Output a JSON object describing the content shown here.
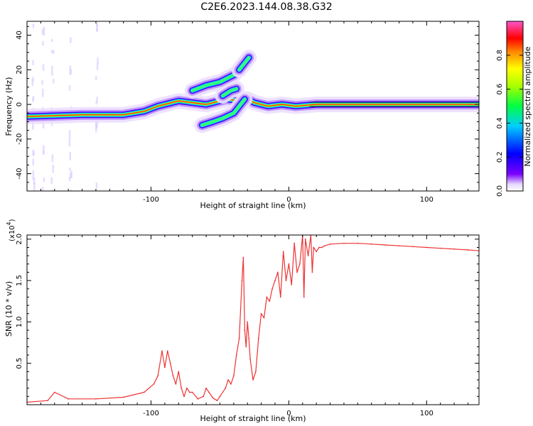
{
  "title": "C2E6.2023.144.08.38.G32",
  "colors": {
    "snr_line": "#ee3333",
    "spectrogram_band": [
      "#6b00ff",
      "#0000ff",
      "#00ccff",
      "#00ff66",
      "#ffff00",
      "#ff6600",
      "#ff0000"
    ]
  },
  "chart_data": [
    {
      "type": "heatmap",
      "xlabel": "Height of straight line (km)",
      "ylabel": "Frequency (Hz)",
      "xlim": [
        -190,
        138
      ],
      "ylim": [
        -50,
        48
      ],
      "x_ticks": [
        {
          "value": -100,
          "label": "-100"
        },
        {
          "value": 0,
          "label": "0"
        },
        {
          "value": 100,
          "label": "100"
        }
      ],
      "y_ticks": [
        {
          "value": 40,
          "label": "40"
        },
        {
          "value": 20,
          "label": "20"
        },
        {
          "value": 0,
          "label": "0"
        },
        {
          "value": -20,
          "label": "-20"
        },
        {
          "value": -40,
          "label": "-40"
        }
      ],
      "colorbar": {
        "label": "Normalized spectral amplitude",
        "range": [
          0,
          1
        ],
        "ticks": [
          {
            "value": 0.0,
            "label": "0.0"
          },
          {
            "value": 0.2,
            "label": "0.2"
          },
          {
            "value": 0.4,
            "label": "0.4"
          },
          {
            "value": 0.6,
            "label": "0.6"
          },
          {
            "value": 0.8,
            "label": "0.8"
          }
        ]
      },
      "ridges": [
        {
          "points": [
            [
              -190,
              -7
            ],
            [
              -150,
              -6
            ],
            [
              -120,
              -6
            ],
            [
              -105,
              -4
            ],
            [
              -95,
              -1
            ],
            [
              -80,
              2
            ],
            [
              -70,
              1
            ],
            [
              -60,
              0
            ],
            [
              -45,
              3
            ],
            [
              -35,
              2
            ],
            [
              -30,
              3
            ],
            [
              -25,
              1
            ],
            [
              -20,
              0
            ],
            [
              -15,
              -1
            ],
            [
              -5,
              0
            ],
            [
              5,
              -1
            ],
            [
              20,
              0
            ],
            [
              138,
              0
            ]
          ]
        },
        {
          "points": [
            [
              -70,
              8
            ],
            [
              -60,
              11
            ],
            [
              -50,
              13
            ],
            [
              -45,
              15
            ],
            [
              -40,
              17
            ]
          ]
        },
        {
          "points": [
            [
              -36,
              20
            ],
            [
              -32,
              24
            ],
            [
              -29,
              27
            ]
          ]
        },
        {
          "points": [
            [
              -63,
              -12
            ],
            [
              -55,
              -10
            ],
            [
              -48,
              -8
            ],
            [
              -40,
              -5
            ],
            [
              -35,
              0
            ],
            [
              -32,
              3
            ]
          ]
        },
        {
          "points": [
            [
              -48,
              5
            ],
            [
              -42,
              8
            ],
            [
              -38,
              9
            ]
          ]
        }
      ]
    },
    {
      "type": "line",
      "xlabel": "Height of straight line (km)",
      "ylabel": "SNR (10 * v/v)",
      "y_multiplier": "(x10",
      "y_multiplier_exp": "4",
      "xlim": [
        -190,
        138
      ],
      "ylim": [
        0,
        20500
      ],
      "x_ticks": [
        {
          "value": -100,
          "label": "-100"
        },
        {
          "value": 0,
          "label": "0"
        },
        {
          "value": 100,
          "label": "100"
        }
      ],
      "y_ticks": [
        {
          "value": 5000,
          "label": "0.5"
        },
        {
          "value": 10000,
          "label": "1.0"
        },
        {
          "value": 15000,
          "label": "1.5"
        },
        {
          "value": 20000,
          "label": "2.0"
        }
      ],
      "series": [
        {
          "x": [
            -190,
            -175,
            -170,
            -160,
            -140,
            -120,
            -105,
            -98,
            -95,
            -92,
            -90,
            -88,
            -86,
            -84,
            -82,
            -80,
            -78,
            -76,
            -74,
            -72,
            -70,
            -66,
            -62,
            -60,
            -58,
            -55,
            -52,
            -50,
            -46,
            -44,
            -42,
            -40,
            -38,
            -36,
            -34,
            -33,
            -32,
            -31,
            -30,
            -29,
            -28,
            -26,
            -24,
            -22,
            -20,
            -18,
            -16,
            -14,
            -12,
            -10,
            -8,
            -6,
            -4,
            -2,
            0,
            2,
            4,
            6,
            8,
            10,
            11,
            12,
            14,
            16,
            17,
            18,
            20,
            22,
            24,
            26,
            30,
            40,
            50,
            60,
            70,
            80,
            90,
            100,
            110,
            120,
            130,
            138
          ],
          "y": [
            300,
            500,
            1500,
            700,
            700,
            900,
            1500,
            2500,
            3500,
            6500,
            4500,
            6500,
            5000,
            3500,
            2500,
            4000,
            2000,
            1000,
            2000,
            1500,
            1500,
            700,
            1000,
            2000,
            1500,
            800,
            500,
            1000,
            2000,
            3000,
            2500,
            3500,
            6000,
            8000,
            15000,
            17800,
            9000,
            7000,
            10000,
            8000,
            5500,
            3000,
            4000,
            8000,
            11000,
            10500,
            13000,
            12500,
            14000,
            15000,
            16000,
            13000,
            18500,
            15000,
            17000,
            14500,
            19500,
            16000,
            17000,
            20500,
            13000,
            20000,
            18000,
            20500,
            16000,
            19000,
            18500,
            19000,
            19000,
            19200,
            19400,
            19500,
            19500,
            19400,
            19300,
            19200,
            19100,
            19000,
            18900,
            18800,
            18700,
            18600
          ]
        }
      ]
    }
  ]
}
